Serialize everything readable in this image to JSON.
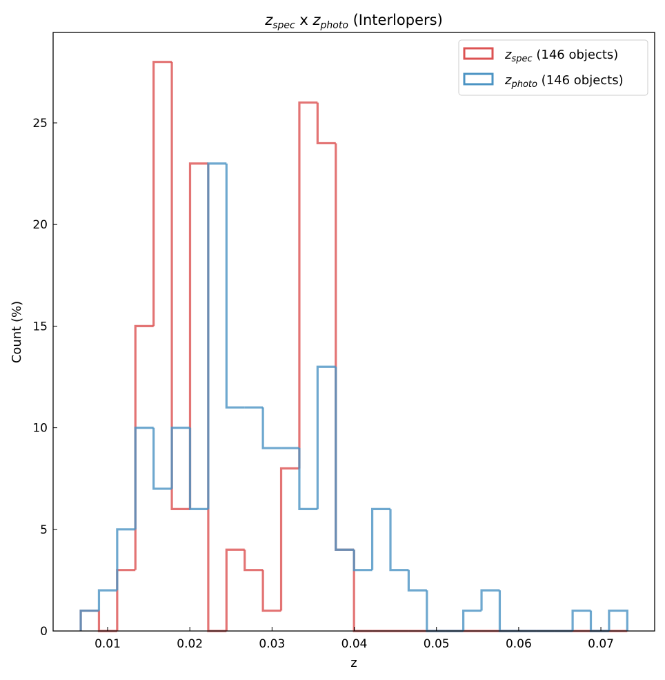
{
  "chart_data": {
    "type": "histogram",
    "title_parts": {
      "a": "z",
      "a_sub": "spec",
      "mid": " x ",
      "b": "z",
      "b_sub": "photo",
      "tail": " (Interlopers)"
    },
    "xlabel": "z",
    "ylabel": "Count (%)",
    "xlim": [
      0.00337,
      0.07654
    ],
    "ylim": [
      0,
      29.45
    ],
    "bin_start": 0.00673,
    "bin_width": 0.002216,
    "xticks": [
      0.01,
      0.02,
      0.03,
      0.04,
      0.05,
      0.06,
      0.07
    ],
    "xtick_labels": [
      "0.01",
      "0.02",
      "0.03",
      "0.04",
      "0.05",
      "0.06",
      "0.07"
    ],
    "yticks": [
      0,
      5,
      10,
      15,
      20,
      25
    ],
    "ytick_labels": [
      "0",
      "5",
      "10",
      "15",
      "20",
      "25"
    ],
    "legend_position": "top-right",
    "series": [
      {
        "name": "z_spec",
        "sym": "z",
        "sub": "spec",
        "label": " (146 objects)",
        "color": "#dc5252",
        "values": [
          1,
          0,
          3,
          15,
          28,
          6,
          23,
          0,
          4,
          3,
          1,
          8,
          26,
          24,
          4,
          0,
          0,
          0,
          0,
          0,
          0,
          0,
          0,
          0,
          0,
          0,
          0,
          0,
          0,
          0
        ]
      },
      {
        "name": "z_photo",
        "sym": "z",
        "sub": "photo",
        "label": " (146 objects)",
        "color": "#4b93c3",
        "values": [
          1,
          2,
          5,
          10,
          7,
          10,
          6,
          23,
          11,
          11,
          9,
          9,
          6,
          13,
          4,
          3,
          6,
          3,
          2,
          0,
          0,
          1,
          2,
          0,
          0,
          0,
          0,
          1,
          0,
          1
        ]
      }
    ]
  }
}
